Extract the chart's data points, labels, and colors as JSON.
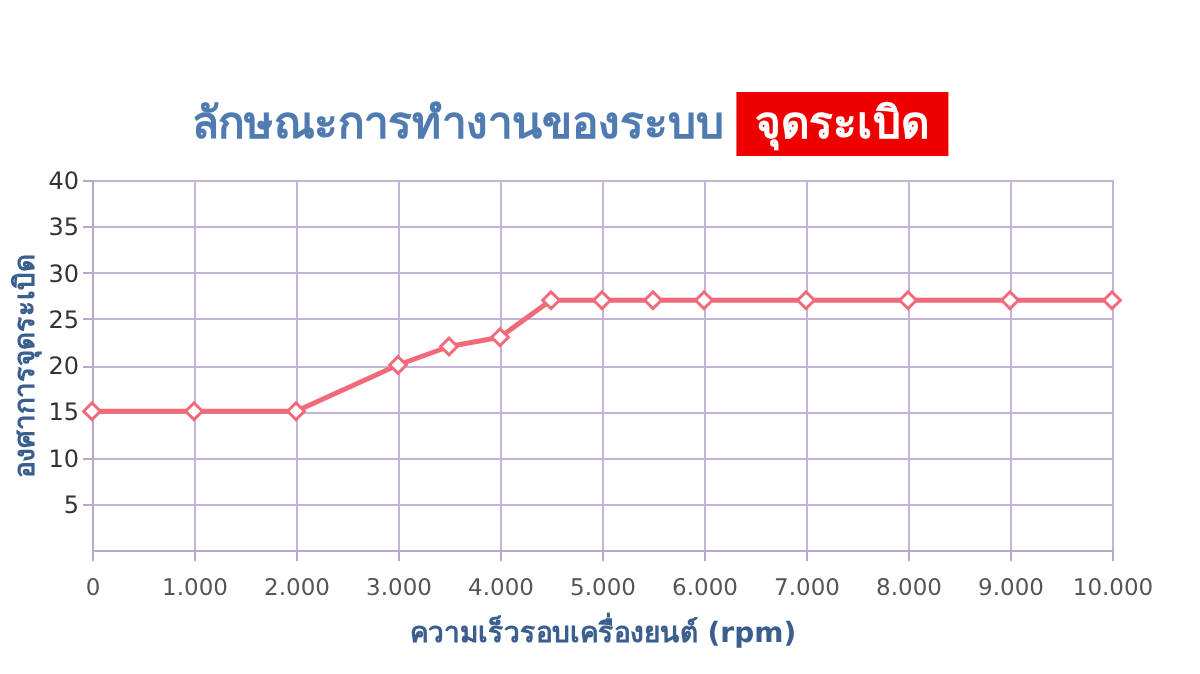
{
  "chart_data": {
    "type": "line",
    "title": "ลักษณะการทำงานของระบบ",
    "subtitle": "จุดระเบิด",
    "xlabel": "ความเร็วรอบเครื่องยนต์ (rpm)",
    "ylabel": "องศาการจุดระเบิด",
    "x": [
      0,
      1000,
      2000,
      3000,
      3500,
      4000,
      4500,
      5000,
      5500,
      6000,
      7000,
      8000,
      9000,
      10000
    ],
    "series": [
      {
        "color": "#f06a7a",
        "values": [
          15,
          15,
          15,
          20,
          22,
          23,
          27,
          27,
          27,
          27,
          27,
          27,
          27,
          27
        ]
      }
    ],
    "xlim": [
      0,
      10000
    ],
    "xticks": [
      0,
      {
        "value": 1000,
        "label": "1.000"
      },
      {
        "value": 2000,
        "label": "2.000"
      },
      {
        "value": 3000,
        "label": "3.000"
      },
      {
        "value": 4000,
        "label": "4.000"
      },
      {
        "value": 5000,
        "label": "5.000"
      },
      {
        "value": 6000,
        "label": "6.000"
      },
      {
        "value": 7000,
        "label": "7.000"
      },
      {
        "value": 8000,
        "label": "8.000"
      },
      {
        "value": 9000,
        "label": "9.000"
      },
      {
        "value": 10000,
        "label": "10.000"
      }
    ],
    "ylim": [
      0,
      40
    ],
    "yticks": [
      5,
      10,
      15,
      20,
      25,
      30,
      35,
      40
    ],
    "grid": true,
    "marker": "diamond",
    "line_style": "solid"
  }
}
